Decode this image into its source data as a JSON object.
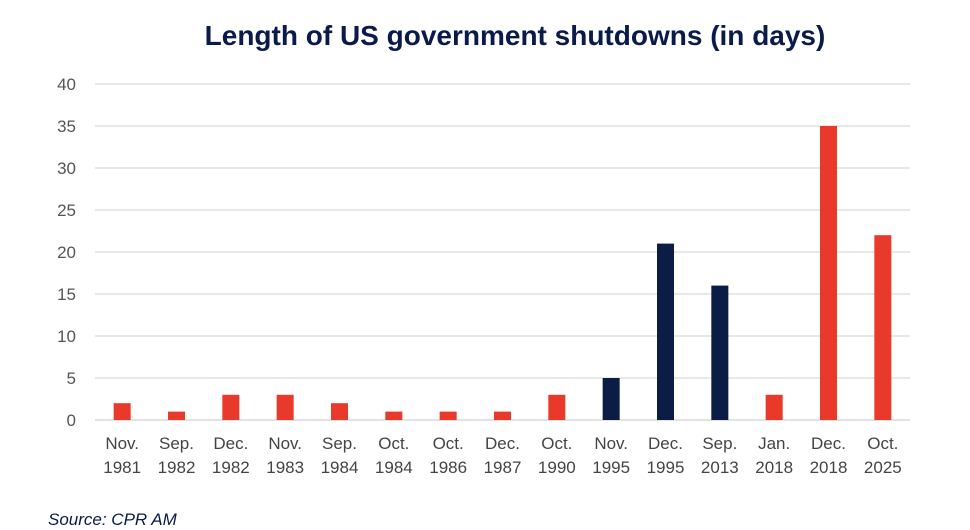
{
  "chart_data": {
    "type": "bar",
    "title": "Length of US government shutdowns (in days)",
    "xlabel": "",
    "ylabel": "",
    "ylim": [
      0,
      40
    ],
    "yticks": [
      0,
      5,
      10,
      15,
      20,
      25,
      30,
      35,
      40
    ],
    "grid": true,
    "categories": [
      [
        "Nov.",
        "1981"
      ],
      [
        "Sep.",
        "1982"
      ],
      [
        "Dec.",
        "1982"
      ],
      [
        "Nov.",
        "1983"
      ],
      [
        "Sep.",
        "1984"
      ],
      [
        "Oct.",
        "1984"
      ],
      [
        "Oct.",
        "1986"
      ],
      [
        "Dec.",
        "1987"
      ],
      [
        "Oct.",
        "1990"
      ],
      [
        "Nov.",
        "1995"
      ],
      [
        "Dec.",
        "1995"
      ],
      [
        "Sep.",
        "2013"
      ],
      [
        "Jan.",
        "2018"
      ],
      [
        "Dec.",
        "2018"
      ],
      [
        "Oct.",
        "2025"
      ]
    ],
    "values": [
      2,
      1,
      3,
      3,
      2,
      1,
      1,
      1,
      3,
      5,
      21,
      16,
      3,
      35,
      22
    ],
    "bar_colors": [
      "#e8392a",
      "#e8392a",
      "#e8392a",
      "#e8392a",
      "#e8392a",
      "#e8392a",
      "#e8392a",
      "#e8392a",
      "#e8392a",
      "#0b1c45",
      "#0b1c45",
      "#0b1c45",
      "#e8392a",
      "#e8392a",
      "#e8392a"
    ]
  },
  "colors": {
    "title": "#0a1a4a",
    "grid": "#d9d9d9"
  },
  "source": "Source: CPR AM"
}
